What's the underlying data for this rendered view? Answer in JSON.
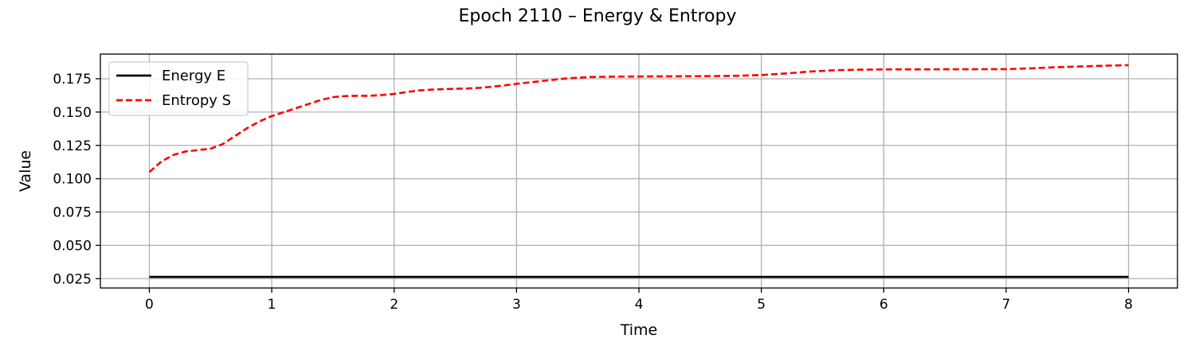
{
  "chart_data": {
    "type": "line",
    "title": "Epoch 2110 – Energy & Entropy",
    "xlabel": "Time",
    "ylabel": "Value",
    "xlim": [
      -0.4,
      8.4
    ],
    "ylim": [
      0.018,
      0.1935
    ],
    "xticks": [
      0,
      1,
      2,
      3,
      4,
      5,
      6,
      7,
      8
    ],
    "xtick_labels": [
      "0",
      "1",
      "2",
      "3",
      "4",
      "5",
      "6",
      "7",
      "8"
    ],
    "yticks": [
      0.025,
      0.05,
      0.075,
      0.1,
      0.125,
      0.15,
      0.175
    ],
    "ytick_labels": [
      "0.025",
      "0.050",
      "0.075",
      "0.100",
      "0.125",
      "0.150",
      "0.175"
    ],
    "grid": true,
    "legend_position": "top-left",
    "series": [
      {
        "name": "Energy E",
        "color": "#000000",
        "style": "solid",
        "x": [
          0,
          8
        ],
        "y": [
          0.0263,
          0.0263
        ]
      },
      {
        "name": "Entropy S",
        "color": "#ff0000",
        "style": "dashed",
        "x": [
          0,
          0.1,
          0.2,
          0.3,
          0.4,
          0.5,
          0.6,
          0.7,
          0.8,
          0.9,
          1.0,
          1.1,
          1.2,
          1.3,
          1.4,
          1.5,
          1.6,
          1.7,
          1.8,
          1.9,
          2.0,
          2.1,
          2.2,
          2.3,
          2.4,
          2.5,
          2.6,
          2.7,
          2.8,
          2.9,
          3.0,
          3.2,
          3.4,
          3.6,
          3.8,
          4.0,
          4.2,
          4.4,
          4.6,
          4.8,
          5.0,
          5.2,
          5.4,
          5.6,
          5.8,
          6.0,
          6.5,
          7.0,
          7.2,
          7.4,
          7.6,
          7.8,
          8.0
        ],
        "y": [
          0.105,
          0.113,
          0.118,
          0.1205,
          0.1215,
          0.1225,
          0.126,
          0.132,
          0.138,
          0.143,
          0.147,
          0.15,
          0.153,
          0.156,
          0.159,
          0.1612,
          0.162,
          0.1622,
          0.1622,
          0.1628,
          0.1636,
          0.165,
          0.1662,
          0.1668,
          0.1672,
          0.1675,
          0.1677,
          0.1682,
          0.169,
          0.17,
          0.1712,
          0.1732,
          0.1752,
          0.1763,
          0.1766,
          0.1767,
          0.1768,
          0.1769,
          0.177,
          0.1772,
          0.1778,
          0.179,
          0.1804,
          0.1814,
          0.1818,
          0.182,
          0.1821,
          0.1822,
          0.1828,
          0.1836,
          0.1842,
          0.1848,
          0.1852
        ]
      }
    ]
  }
}
